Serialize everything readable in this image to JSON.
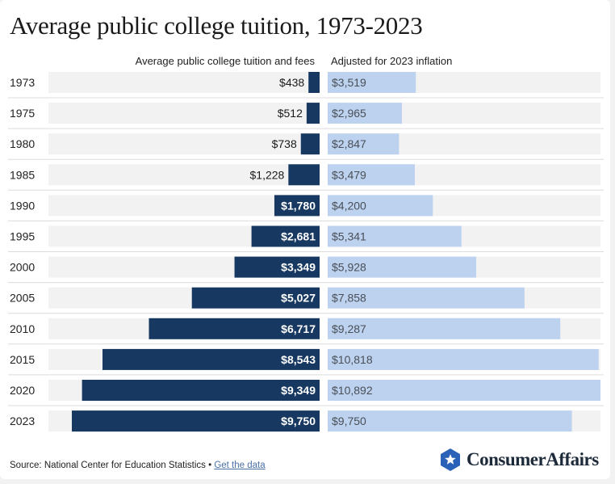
{
  "title": "Average public college tuition, 1973-2023",
  "headers": {
    "left": "Average public college tuition and fees",
    "right": "Adjusted for 2023 inflation"
  },
  "source": {
    "text": "Source: National Center for Education Statistics •",
    "link": "Get the data"
  },
  "logo": {
    "text": "ConsumerAffairs",
    "icon": "star-shield-icon"
  },
  "colors": {
    "nominal": "#173861",
    "adjusted": "#bcd2ef",
    "track": "#f2f2f2",
    "divider": "#dcdcdc"
  },
  "chart_data": {
    "type": "bar",
    "title": "Average public college tuition, 1973-2023",
    "categories": [
      "1973",
      "1975",
      "1980",
      "1985",
      "1990",
      "1995",
      "2000",
      "2005",
      "2010",
      "2015",
      "2020",
      "2023"
    ],
    "series": [
      {
        "name": "Average public college tuition and fees",
        "values": [
          438,
          512,
          738,
          1228,
          1780,
          2681,
          3349,
          5027,
          6717,
          8543,
          9349,
          9750
        ],
        "labels": [
          "$438",
          "$512",
          "$738",
          "$1,228",
          "$1,780",
          "$2,681",
          "$3,349",
          "$5,027",
          "$6,717",
          "$8,543",
          "$9,349",
          "$9,750"
        ]
      },
      {
        "name": "Adjusted for 2023 inflation",
        "values": [
          3519,
          2965,
          2847,
          3479,
          4200,
          5341,
          5928,
          7858,
          9287,
          10818,
          10892,
          9750
        ],
        "labels": [
          "$3,519",
          "$2,965",
          "$2,847",
          "$3,479",
          "$4,200",
          "$5,341",
          "$5,928",
          "$7,858",
          "$9,287",
          "$10,818",
          "$10,892",
          "$9,750"
        ]
      }
    ],
    "xlim": [
      0,
      10892
    ],
    "orientation": "horizontal-butterfly"
  }
}
